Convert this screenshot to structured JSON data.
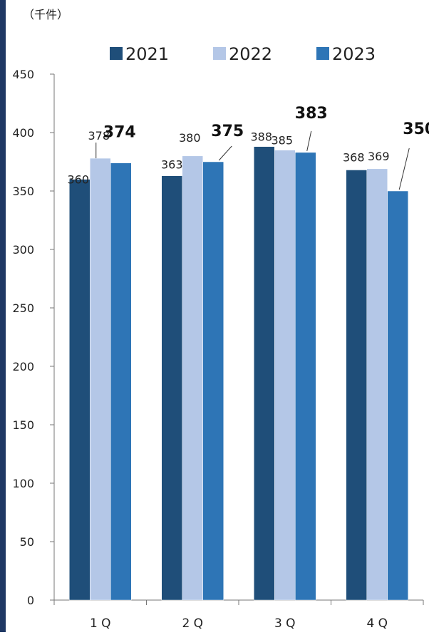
{
  "chart_data": {
    "type": "bar",
    "unit_label": "（千件）",
    "categories": [
      "1Q",
      "2Q",
      "3Q",
      "4Q"
    ],
    "series": [
      {
        "name": "2021",
        "values": [
          360,
          363,
          388,
          368
        ]
      },
      {
        "name": "2022",
        "values": [
          378,
          380,
          385,
          369
        ]
      },
      {
        "name": "2023",
        "values": [
          374,
          375,
          383,
          350
        ]
      }
    ],
    "ylim": [
      0,
      450
    ],
    "yticks": [
      0,
      50,
      100,
      150,
      200,
      250,
      300,
      350,
      400,
      450
    ],
    "grid": false,
    "legend_position": "top",
    "colors": {
      "2021": "#1f4e79",
      "2022": "#b4c7e7",
      "2023": "#2e75b6",
      "left_border": "#1f3864"
    },
    "highlight_series": "2023"
  }
}
